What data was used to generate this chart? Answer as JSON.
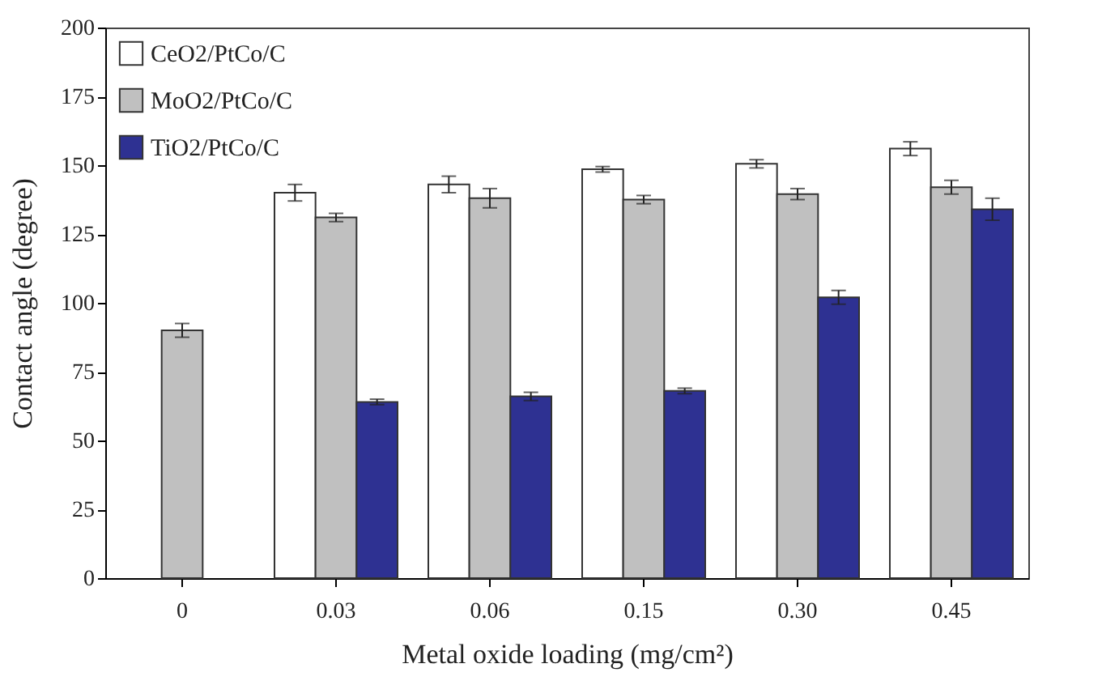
{
  "chart_data": {
    "type": "bar",
    "xlabel": "Metal oxide loading (mg/cm²)",
    "ylabel": "Contact angle (degree)",
    "categories": [
      "0",
      "0.03",
      "0.06",
      "0.15",
      "0.30",
      "0.45"
    ],
    "series": [
      {
        "name": "CeO2/PtCo/C",
        "color": "#ffffff",
        "values": [
          null,
          140,
          143,
          148.5,
          150.5,
          156
        ],
        "errors": [
          null,
          3,
          3,
          1,
          1.5,
          2.5
        ]
      },
      {
        "name": "MoO2/PtCo/C",
        "color": "#c0c0c0",
        "values": [
          90,
          131,
          138,
          137.5,
          139.5,
          142
        ],
        "errors": [
          2.5,
          1.5,
          3.5,
          1.5,
          2,
          2.5
        ]
      },
      {
        "name": "TiO2/PtCo/C",
        "color": "#2e3192",
        "values": [
          null,
          64,
          66,
          68,
          102,
          134
        ],
        "errors": [
          null,
          1,
          1.5,
          1,
          2.5,
          4
        ]
      }
    ],
    "ylim": [
      0,
      200
    ],
    "yticks": [
      0,
      25,
      50,
      75,
      100,
      125,
      150,
      175,
      200
    ],
    "grid": false,
    "legend": "top left"
  }
}
